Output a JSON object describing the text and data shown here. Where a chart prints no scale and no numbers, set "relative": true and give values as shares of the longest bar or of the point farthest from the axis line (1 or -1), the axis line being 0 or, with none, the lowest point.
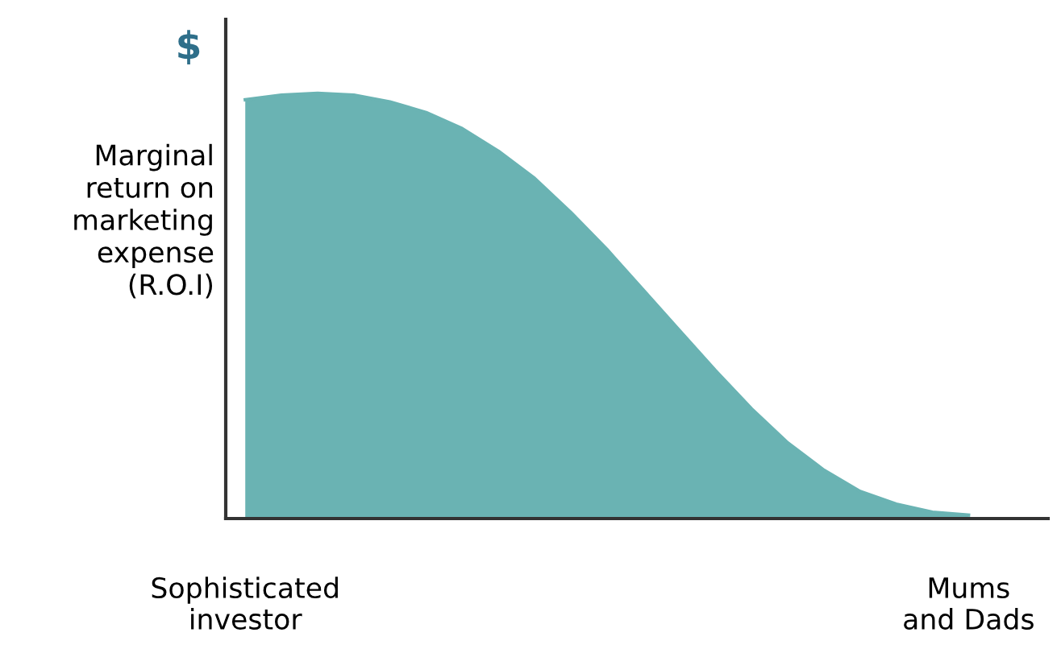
{
  "chart_data": {
    "type": "area",
    "relative": true,
    "ylabel": "Marginal\nreturn on\nmarketing\nexpense\n(R.O.I)",
    "annotations": [
      "$"
    ],
    "categories": [
      "Sophisticated\ninvestor",
      null,
      null,
      null,
      null,
      null,
      null,
      null,
      null,
      null,
      null,
      null,
      null,
      null,
      null,
      null,
      null,
      null,
      null,
      null,
      "Mums\nand Dads"
    ],
    "series": [
      {
        "color": "#6ab3b3",
        "values": [
          0.985,
          0.996,
          1.0,
          0.996,
          0.98,
          0.955,
          0.917,
          0.864,
          0.8,
          0.72,
          0.633,
          0.538,
          0.443,
          0.348,
          0.258,
          0.178,
          0.114,
          0.064,
          0.034,
          0.015,
          0.008
        ]
      }
    ],
    "grid": false,
    "legend": false
  }
}
